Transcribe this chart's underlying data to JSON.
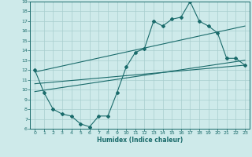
{
  "xlabel": "Humidex (Indice chaleur)",
  "bg_color": "#ceeaea",
  "grid_color": "#a8cece",
  "line_color": "#1a6b6b",
  "xlim": [
    -0.5,
    23.5
  ],
  "ylim": [
    6,
    19
  ],
  "xticks": [
    0,
    1,
    2,
    3,
    4,
    5,
    6,
    7,
    8,
    9,
    10,
    11,
    12,
    13,
    14,
    15,
    16,
    17,
    18,
    19,
    20,
    21,
    22,
    23
  ],
  "yticks": [
    6,
    7,
    8,
    9,
    10,
    11,
    12,
    13,
    14,
    15,
    16,
    17,
    18,
    19
  ],
  "main_x": [
    0,
    1,
    2,
    3,
    4,
    5,
    6,
    7,
    8,
    9,
    10,
    11,
    12,
    13,
    14,
    15,
    16,
    17,
    18,
    19,
    20,
    21,
    22,
    23
  ],
  "main_y": [
    12,
    9.7,
    8,
    7.5,
    7.3,
    6.5,
    6.2,
    7.3,
    7.3,
    9.7,
    12.3,
    13.8,
    14.2,
    17,
    16.5,
    17.2,
    17.4,
    19,
    17,
    16.5,
    15.8,
    13.2,
    13.2,
    12.5
  ],
  "line1_x": [
    0,
    23
  ],
  "line1_y": [
    11.8,
    16.5
  ],
  "line2_x": [
    0,
    23
  ],
  "line2_y": [
    9.8,
    13.0
  ],
  "line3_x": [
    0,
    23
  ],
  "line3_y": [
    10.6,
    12.5
  ]
}
